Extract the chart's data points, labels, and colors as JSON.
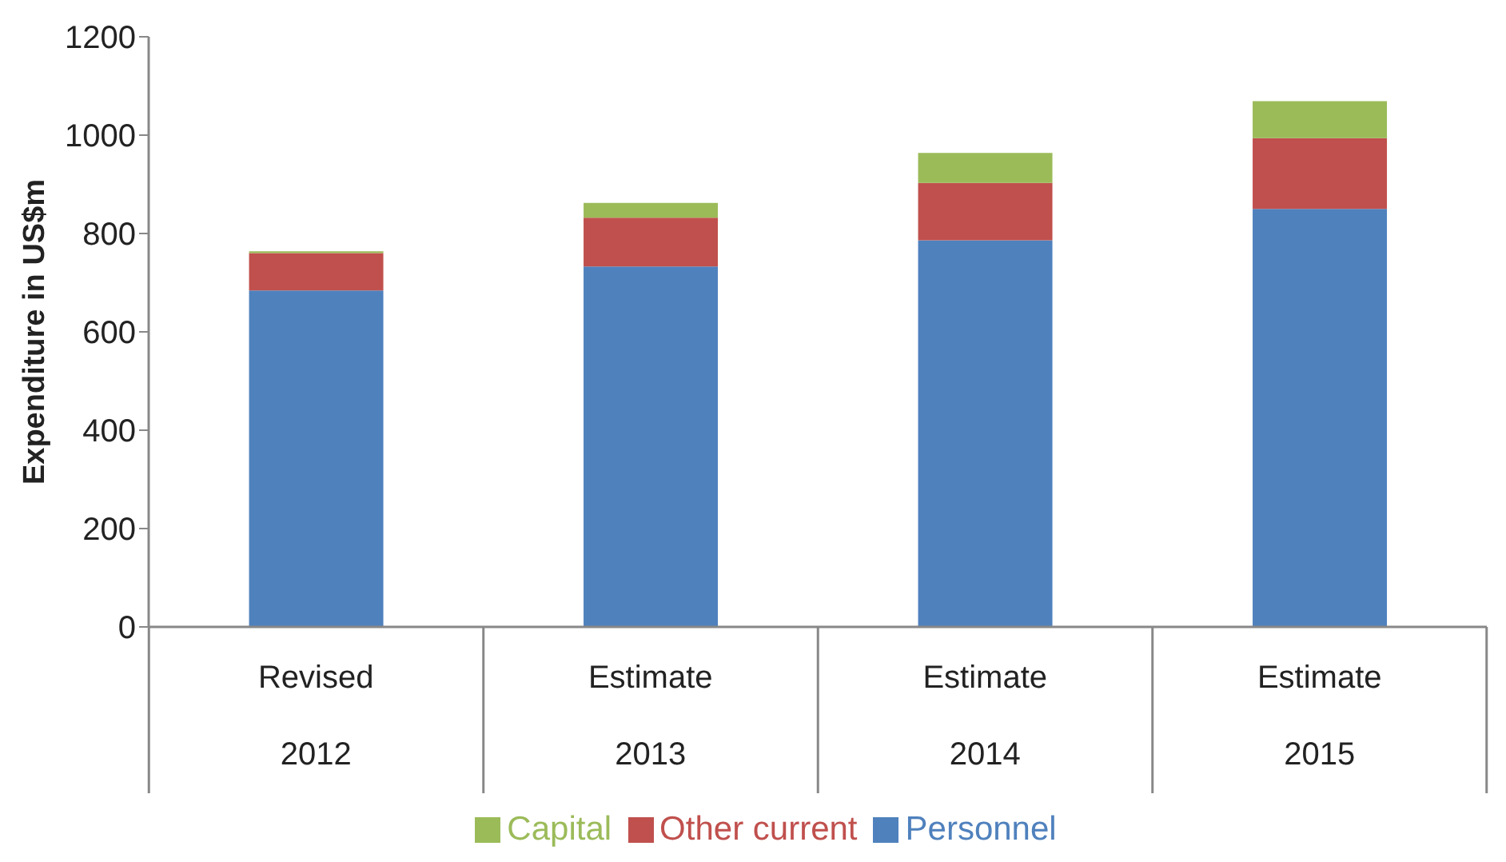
{
  "chart_data": {
    "type": "bar",
    "ylabel": "Expenditure in US$m",
    "categories": [
      "Revised\n2012",
      "Estimate\n2013",
      "Estimate\n2014",
      "Estimate\n2015"
    ],
    "stacked": true,
    "series": [
      {
        "name": "Personnel",
        "color": "#4f81bd",
        "values": [
          684,
          733,
          786,
          850
        ]
      },
      {
        "name": "Other current",
        "color": "#c0504d",
        "values": [
          76,
          99,
          117,
          144
        ]
      },
      {
        "name": "Capital",
        "color": "#9bbb59",
        "values": [
          4,
          30,
          61,
          75
        ]
      }
    ],
    "ylim": [
      0,
      1200
    ],
    "yticks": [
      0,
      200,
      400,
      600,
      800,
      1000,
      1200
    ],
    "legend": "bottom"
  }
}
